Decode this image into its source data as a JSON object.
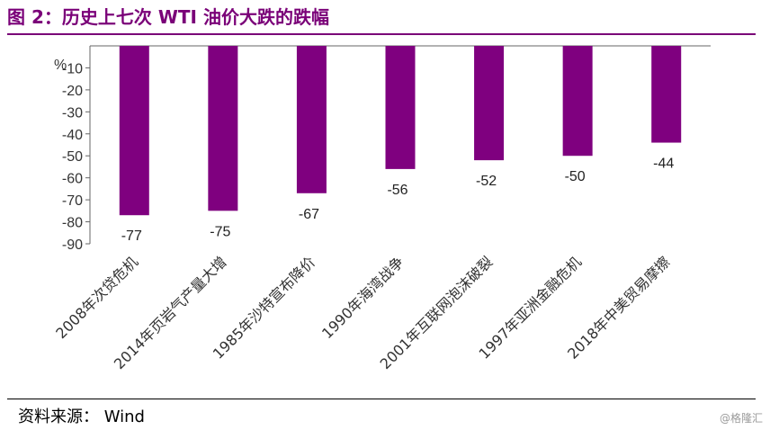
{
  "title": "图 2：历史上七次 WTI 油价大跌的跌幅",
  "source": "资料来源：  Wind",
  "watermark": "@格隆汇",
  "colors": {
    "accent": "#7a0078",
    "bar": "#7f007f"
  },
  "chart_data": {
    "type": "bar",
    "title": "图 2：历史上七次 WTI 油价大跌的跌幅",
    "unit_label": "%",
    "xlabel": "",
    "ylabel": "",
    "categories": [
      "2008年次贷危机",
      "2014年页岩气产量大增",
      "1985年沙特宣布降价",
      "1990年海湾战争",
      "2001年互联网泡沫破裂",
      "1997年亚洲金融危机",
      "2018年中美贸易摩擦"
    ],
    "values": [
      -77,
      -75,
      -67,
      -56,
      -52,
      -50,
      -44
    ],
    "yticks": [
      -10,
      -20,
      -30,
      -40,
      -50,
      -60,
      -70,
      -80,
      -90
    ],
    "ylim": [
      -90,
      0
    ],
    "grid": false,
    "legend": "none"
  }
}
